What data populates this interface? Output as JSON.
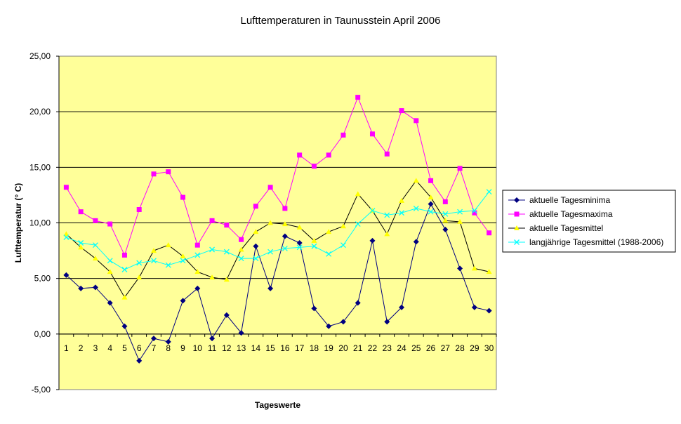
{
  "chart_data": {
    "type": "line",
    "title": "Lufttemperaturen in Taunusstein  April  2006",
    "xlabel": "Tageswerte",
    "ylabel": "Lufttemperatur (° C)",
    "ylim": [
      -5,
      25
    ],
    "yticks": [
      "-5,00",
      "0,00",
      "5,00",
      "10,00",
      "15,00",
      "20,00",
      "25,00"
    ],
    "x": [
      1,
      2,
      3,
      4,
      5,
      6,
      7,
      8,
      9,
      10,
      11,
      12,
      13,
      14,
      15,
      16,
      17,
      18,
      19,
      20,
      21,
      22,
      23,
      24,
      25,
      26,
      27,
      28,
      29,
      30
    ],
    "grid": "horizontal",
    "plot_background": "#FFFF99",
    "legend_position": "right",
    "series": [
      {
        "name": "aktuelle Tagesminima",
        "color": "#000080",
        "marker": "diamond",
        "values": [
          5.3,
          4.1,
          4.2,
          2.8,
          0.7,
          -2.4,
          -0.4,
          -0.7,
          3.0,
          4.1,
          -0.4,
          1.7,
          0.1,
          7.9,
          4.1,
          8.8,
          8.2,
          2.3,
          0.7,
          1.1,
          2.8,
          8.4,
          1.1,
          2.4,
          8.3,
          11.7,
          9.4,
          5.9,
          2.4,
          2.1
        ]
      },
      {
        "name": "aktuelle Tagesmaxima",
        "color": "#FF00FF",
        "marker": "square",
        "values": [
          13.2,
          11.0,
          10.2,
          9.9,
          7.1,
          11.2,
          14.4,
          14.6,
          12.3,
          8.0,
          10.2,
          9.8,
          8.5,
          11.5,
          13.2,
          11.3,
          16.1,
          15.1,
          16.1,
          17.9,
          21.3,
          18.0,
          16.2,
          20.1,
          19.2,
          13.8,
          11.9,
          14.9,
          10.9,
          9.1
        ]
      },
      {
        "name": "aktuelle Tagesmittel",
        "color": "#FFFF00",
        "line_color": "#000000",
        "marker": "triangle",
        "values": [
          9.0,
          7.8,
          6.8,
          5.6,
          3.3,
          5.1,
          7.5,
          8.0,
          7.0,
          5.6,
          5.1,
          4.9,
          7.6,
          9.2,
          10.0,
          9.9,
          9.6,
          8.4,
          9.2,
          9.7,
          12.6,
          11.1,
          9.0,
          12.0,
          13.8,
          12.3,
          10.2,
          10.1,
          5.9,
          5.6
        ]
      },
      {
        "name": "langjährige Tagesmittel (1988-2006)",
        "color": "#00FFFF",
        "marker": "x",
        "values": [
          8.7,
          8.2,
          8.0,
          6.6,
          5.8,
          6.4,
          6.6,
          6.2,
          6.6,
          7.1,
          7.6,
          7.4,
          6.8,
          6.8,
          7.4,
          7.7,
          7.8,
          7.9,
          7.2,
          8.0,
          9.9,
          11.1,
          10.7,
          10.9,
          11.3,
          11.0,
          10.8,
          11.0,
          11.1,
          12.8
        ]
      }
    ]
  }
}
